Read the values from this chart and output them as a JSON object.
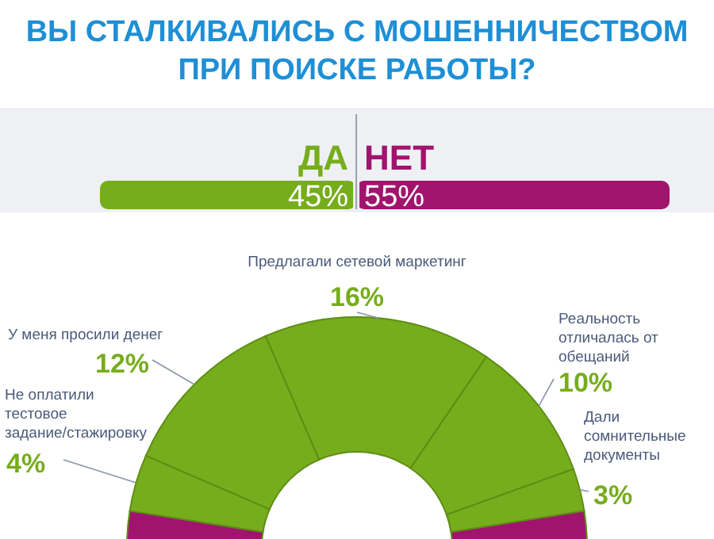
{
  "chart_data": [
    {
      "type": "bar",
      "title": "ВЫ СТАЛКИВАЛИСЬ С МОШЕННИЧЕСТВОМ ПРИ ПОИСКЕ РАБОТЫ?",
      "orientation": "horizontal",
      "stacked": true,
      "categories": [
        null
      ],
      "ref_lines": [
        {
          "axis": "x",
          "value": 45,
          "color": "#9aa0a8"
        }
      ],
      "series": [
        {
          "name": "ДА",
          "color": "#76ad1c",
          "values": [
            45
          ],
          "value_labels": [
            "45%"
          ]
        },
        {
          "name": "НЕТ",
          "color": "#a0146e",
          "values": [
            55
          ],
          "value_labels": [
            "55%"
          ]
        }
      ]
    },
    {
      "type": "donut",
      "categories": [
        "Не оплатили тестовое задание/стажировку",
        "У меня просили денег",
        "Предлагали сетевой маркетинг",
        "Реальность отличалась от обещаний",
        "Дали сомнительные документы",
        null
      ],
      "values": [
        4,
        12,
        16,
        10,
        3,
        55
      ],
      "colors": [
        "#76ad1c",
        "#76ad1c",
        "#76ad1c",
        "#76ad1c",
        "#76ad1c",
        "#a0146e"
      ],
      "value_labels": [
        "4%",
        "12%",
        "16%",
        "10%",
        "3%",
        null
      ]
    }
  ]
}
